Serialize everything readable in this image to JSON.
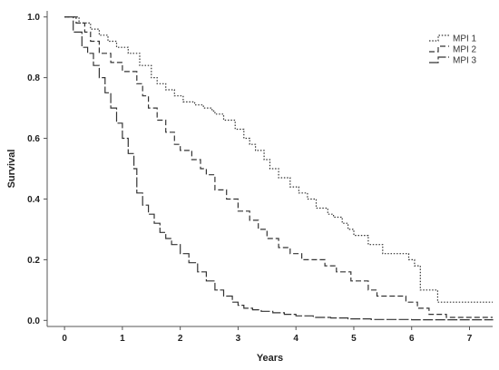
{
  "chart_data": {
    "type": "line",
    "title": "",
    "xlabel": "Years",
    "ylabel": "Survival",
    "xlim": [
      -0.3,
      7.4
    ],
    "ylim": [
      -0.02,
      1.02
    ],
    "xticks": [
      0,
      1,
      2,
      3,
      4,
      5,
      6,
      7
    ],
    "yticks": [
      0.0,
      0.2,
      0.4,
      0.6,
      0.8,
      1.0
    ],
    "ytick_labels": [
      "0.0",
      "0.2",
      "0.4",
      "0.6",
      "0.8",
      "1.0"
    ],
    "grid": false,
    "legend_position": "top-right",
    "step": true,
    "series": [
      {
        "name": "MPI 1",
        "dash": "dotted",
        "x": [
          0,
          0.25,
          0.45,
          0.6,
          0.75,
          0.9,
          1.1,
          1.3,
          1.5,
          1.6,
          1.75,
          1.9,
          2.05,
          2.25,
          2.4,
          2.55,
          2.6,
          2.75,
          2.95,
          3.1,
          3.2,
          3.3,
          3.45,
          3.55,
          3.7,
          3.9,
          4.05,
          4.2,
          4.35,
          4.55,
          4.65,
          4.8,
          4.9,
          5.0,
          5.25,
          5.5,
          5.75,
          5.95,
          6.05,
          6.15,
          6.45,
          7.4
        ],
        "y": [
          1.0,
          0.98,
          0.96,
          0.94,
          0.92,
          0.9,
          0.88,
          0.84,
          0.8,
          0.78,
          0.76,
          0.74,
          0.72,
          0.71,
          0.7,
          0.69,
          0.68,
          0.66,
          0.63,
          0.6,
          0.58,
          0.56,
          0.53,
          0.5,
          0.47,
          0.44,
          0.42,
          0.4,
          0.37,
          0.35,
          0.34,
          0.32,
          0.3,
          0.28,
          0.25,
          0.22,
          0.22,
          0.2,
          0.18,
          0.1,
          0.06,
          0.06
        ]
      },
      {
        "name": "MPI 2",
        "dash": "dashed",
        "x": [
          0,
          0.2,
          0.35,
          0.45,
          0.6,
          0.8,
          1.0,
          1.25,
          1.35,
          1.45,
          1.6,
          1.75,
          1.9,
          2.0,
          2.2,
          2.35,
          2.45,
          2.6,
          2.8,
          3.0,
          3.2,
          3.35,
          3.5,
          3.7,
          3.9,
          4.1,
          4.3,
          4.5,
          4.7,
          4.95,
          5.25,
          5.4,
          5.6,
          5.9,
          6.1,
          6.3,
          6.6,
          7.4
        ],
        "y": [
          1.0,
          0.98,
          0.95,
          0.92,
          0.88,
          0.85,
          0.82,
          0.78,
          0.74,
          0.7,
          0.66,
          0.62,
          0.58,
          0.56,
          0.53,
          0.5,
          0.48,
          0.43,
          0.4,
          0.36,
          0.33,
          0.3,
          0.27,
          0.24,
          0.22,
          0.2,
          0.2,
          0.18,
          0.16,
          0.13,
          0.1,
          0.08,
          0.08,
          0.06,
          0.04,
          0.02,
          0.01,
          0.01
        ]
      },
      {
        "name": "MPI 3",
        "dash": "long-dash",
        "x": [
          0,
          0.15,
          0.3,
          0.4,
          0.5,
          0.6,
          0.7,
          0.8,
          0.9,
          1.0,
          1.1,
          1.2,
          1.25,
          1.35,
          1.45,
          1.55,
          1.65,
          1.75,
          1.85,
          2.0,
          2.15,
          2.3,
          2.45,
          2.6,
          2.75,
          2.9,
          3.0,
          3.1,
          3.25,
          3.4,
          3.6,
          3.8,
          4.0,
          4.3,
          4.6,
          4.9,
          5.3,
          6.0,
          7.4
        ],
        "y": [
          1.0,
          0.95,
          0.9,
          0.88,
          0.84,
          0.8,
          0.75,
          0.7,
          0.65,
          0.6,
          0.55,
          0.5,
          0.42,
          0.38,
          0.35,
          0.32,
          0.29,
          0.27,
          0.25,
          0.22,
          0.19,
          0.16,
          0.13,
          0.1,
          0.08,
          0.06,
          0.05,
          0.04,
          0.035,
          0.03,
          0.025,
          0.02,
          0.015,
          0.01,
          0.008,
          0.005,
          0.003,
          0.002,
          0.0
        ]
      }
    ]
  }
}
